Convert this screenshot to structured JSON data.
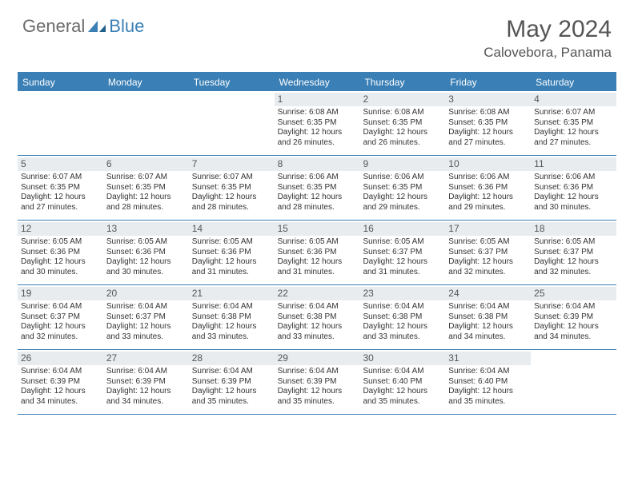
{
  "logo": {
    "text1": "General",
    "text2": "Blue"
  },
  "title": "May 2024",
  "location": "Calovebora, Panama",
  "colors": {
    "brand": "#3a7fb5",
    "headerText": "#ffffff",
    "dayNumBg": "#e8ecef",
    "text": "#333333",
    "logoGray": "#6b6b6b"
  },
  "daysOfWeek": [
    "Sunday",
    "Monday",
    "Tuesday",
    "Wednesday",
    "Thursday",
    "Friday",
    "Saturday"
  ],
  "weeks": [
    [
      {
        "n": "",
        "empty": true
      },
      {
        "n": "",
        "empty": true
      },
      {
        "n": "",
        "empty": true
      },
      {
        "n": "1",
        "sunrise": "6:08 AM",
        "sunset": "6:35 PM",
        "dl": "12 hours and 26 minutes."
      },
      {
        "n": "2",
        "sunrise": "6:08 AM",
        "sunset": "6:35 PM",
        "dl": "12 hours and 26 minutes."
      },
      {
        "n": "3",
        "sunrise": "6:08 AM",
        "sunset": "6:35 PM",
        "dl": "12 hours and 27 minutes."
      },
      {
        "n": "4",
        "sunrise": "6:07 AM",
        "sunset": "6:35 PM",
        "dl": "12 hours and 27 minutes."
      }
    ],
    [
      {
        "n": "5",
        "sunrise": "6:07 AM",
        "sunset": "6:35 PM",
        "dl": "12 hours and 27 minutes."
      },
      {
        "n": "6",
        "sunrise": "6:07 AM",
        "sunset": "6:35 PM",
        "dl": "12 hours and 28 minutes."
      },
      {
        "n": "7",
        "sunrise": "6:07 AM",
        "sunset": "6:35 PM",
        "dl": "12 hours and 28 minutes."
      },
      {
        "n": "8",
        "sunrise": "6:06 AM",
        "sunset": "6:35 PM",
        "dl": "12 hours and 28 minutes."
      },
      {
        "n": "9",
        "sunrise": "6:06 AM",
        "sunset": "6:35 PM",
        "dl": "12 hours and 29 minutes."
      },
      {
        "n": "10",
        "sunrise": "6:06 AM",
        "sunset": "6:36 PM",
        "dl": "12 hours and 29 minutes."
      },
      {
        "n": "11",
        "sunrise": "6:06 AM",
        "sunset": "6:36 PM",
        "dl": "12 hours and 30 minutes."
      }
    ],
    [
      {
        "n": "12",
        "sunrise": "6:05 AM",
        "sunset": "6:36 PM",
        "dl": "12 hours and 30 minutes."
      },
      {
        "n": "13",
        "sunrise": "6:05 AM",
        "sunset": "6:36 PM",
        "dl": "12 hours and 30 minutes."
      },
      {
        "n": "14",
        "sunrise": "6:05 AM",
        "sunset": "6:36 PM",
        "dl": "12 hours and 31 minutes."
      },
      {
        "n": "15",
        "sunrise": "6:05 AM",
        "sunset": "6:36 PM",
        "dl": "12 hours and 31 minutes."
      },
      {
        "n": "16",
        "sunrise": "6:05 AM",
        "sunset": "6:37 PM",
        "dl": "12 hours and 31 minutes."
      },
      {
        "n": "17",
        "sunrise": "6:05 AM",
        "sunset": "6:37 PM",
        "dl": "12 hours and 32 minutes."
      },
      {
        "n": "18",
        "sunrise": "6:05 AM",
        "sunset": "6:37 PM",
        "dl": "12 hours and 32 minutes."
      }
    ],
    [
      {
        "n": "19",
        "sunrise": "6:04 AM",
        "sunset": "6:37 PM",
        "dl": "12 hours and 32 minutes."
      },
      {
        "n": "20",
        "sunrise": "6:04 AM",
        "sunset": "6:37 PM",
        "dl": "12 hours and 33 minutes."
      },
      {
        "n": "21",
        "sunrise": "6:04 AM",
        "sunset": "6:38 PM",
        "dl": "12 hours and 33 minutes."
      },
      {
        "n": "22",
        "sunrise": "6:04 AM",
        "sunset": "6:38 PM",
        "dl": "12 hours and 33 minutes."
      },
      {
        "n": "23",
        "sunrise": "6:04 AM",
        "sunset": "6:38 PM",
        "dl": "12 hours and 33 minutes."
      },
      {
        "n": "24",
        "sunrise": "6:04 AM",
        "sunset": "6:38 PM",
        "dl": "12 hours and 34 minutes."
      },
      {
        "n": "25",
        "sunrise": "6:04 AM",
        "sunset": "6:39 PM",
        "dl": "12 hours and 34 minutes."
      }
    ],
    [
      {
        "n": "26",
        "sunrise": "6:04 AM",
        "sunset": "6:39 PM",
        "dl": "12 hours and 34 minutes."
      },
      {
        "n": "27",
        "sunrise": "6:04 AM",
        "sunset": "6:39 PM",
        "dl": "12 hours and 34 minutes."
      },
      {
        "n": "28",
        "sunrise": "6:04 AM",
        "sunset": "6:39 PM",
        "dl": "12 hours and 35 minutes."
      },
      {
        "n": "29",
        "sunrise": "6:04 AM",
        "sunset": "6:39 PM",
        "dl": "12 hours and 35 minutes."
      },
      {
        "n": "30",
        "sunrise": "6:04 AM",
        "sunset": "6:40 PM",
        "dl": "12 hours and 35 minutes."
      },
      {
        "n": "31",
        "sunrise": "6:04 AM",
        "sunset": "6:40 PM",
        "dl": "12 hours and 35 minutes."
      },
      {
        "n": "",
        "empty": true
      }
    ]
  ],
  "labels": {
    "sunrise": "Sunrise:",
    "sunset": "Sunset:",
    "daylight": "Daylight:"
  }
}
